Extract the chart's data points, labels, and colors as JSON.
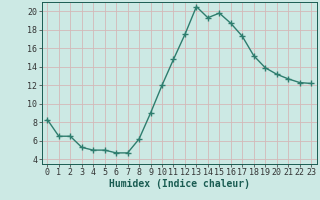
{
  "x": [
    0,
    1,
    2,
    3,
    4,
    5,
    6,
    7,
    8,
    9,
    10,
    11,
    12,
    13,
    14,
    15,
    16,
    17,
    18,
    19,
    20,
    21,
    22,
    23
  ],
  "y": [
    8.3,
    6.5,
    6.5,
    5.3,
    5.0,
    5.0,
    4.7,
    4.7,
    6.2,
    9.0,
    12.0,
    14.8,
    17.5,
    20.5,
    19.3,
    19.8,
    18.7,
    17.3,
    15.2,
    13.9,
    13.2,
    12.7,
    12.3,
    12.2
  ],
  "line_color": "#2e7d6e",
  "marker": "+",
  "marker_size": 4,
  "marker_lw": 1.0,
  "bg_color": "#cce9e4",
  "grid_color": "#d4b8b8",
  "xlabel": "Humidex (Indice chaleur)",
  "ylabel": "",
  "xlim": [
    -0.5,
    23.5
  ],
  "ylim": [
    3.5,
    21.0
  ],
  "yticks": [
    4,
    6,
    8,
    10,
    12,
    14,
    16,
    18,
    20
  ],
  "xticks": [
    0,
    1,
    2,
    3,
    4,
    5,
    6,
    7,
    8,
    9,
    10,
    11,
    12,
    13,
    14,
    15,
    16,
    17,
    18,
    19,
    20,
    21,
    22,
    23
  ],
  "xlabel_fontsize": 7.0,
  "tick_fontsize": 6.0,
  "linewidth": 1.0
}
